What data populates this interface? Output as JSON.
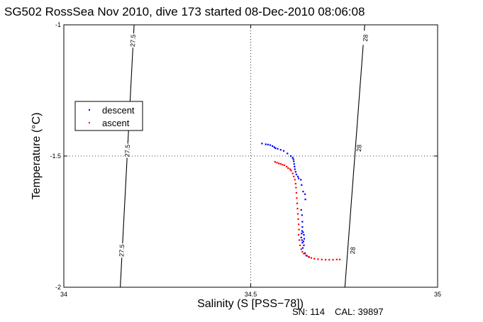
{
  "chart_data": {
    "type": "scatter",
    "title": "SG502 RossSea Nov 2010, dive 173 started 08-Dec-2010 08:06:08",
    "xlabel": "Salinity (S [PSS−78])",
    "ylabel": "Temperature (°C)",
    "xlim": [
      34,
      35
    ],
    "ylim": [
      -2,
      -1
    ],
    "x_ticks": [
      34,
      34.5,
      35
    ],
    "y_ticks": [
      -1,
      -1.5,
      -2
    ],
    "x_tick_labels": [
      "34",
      "34.5",
      "35"
    ],
    "y_tick_labels": [
      "-1",
      "-1.5",
      "-2"
    ],
    "grid": "dotted at 34.5 and -1.5",
    "legend_position": "upper-left",
    "isopycnals": [
      {
        "label": "27.5",
        "points": [
          [
            34.188,
            -1.0
          ],
          [
            34.151,
            -2.0
          ]
        ],
        "label_positions": [
          [
            34.185,
            -1.06
          ],
          [
            34.17,
            -1.48
          ],
          [
            34.155,
            -1.86
          ]
        ]
      },
      {
        "label": "28",
        "points": [
          [
            34.805,
            -1.0
          ],
          [
            34.752,
            -2.0
          ]
        ],
        "label_positions": [
          [
            34.807,
            -1.05
          ],
          [
            34.79,
            -1.47
          ],
          [
            34.773,
            -1.86
          ]
        ]
      }
    ],
    "series": [
      {
        "name": "descent",
        "color": "#0000ff",
        "points": [
          [
            34.53,
            -1.452
          ],
          [
            34.54,
            -1.455
          ],
          [
            34.546,
            -1.456
          ],
          [
            34.552,
            -1.458
          ],
          [
            34.558,
            -1.462
          ],
          [
            34.563,
            -1.466
          ],
          [
            34.566,
            -1.47
          ],
          [
            34.572,
            -1.472
          ],
          [
            34.58,
            -1.476
          ],
          [
            34.588,
            -1.48
          ],
          [
            34.598,
            -1.49
          ],
          [
            34.607,
            -1.5
          ],
          [
            34.612,
            -1.506
          ],
          [
            34.614,
            -1.512
          ],
          [
            34.615,
            -1.52
          ],
          [
            34.616,
            -1.53
          ],
          [
            34.617,
            -1.54
          ],
          [
            34.618,
            -1.55
          ],
          [
            34.62,
            -1.56
          ],
          [
            34.622,
            -1.57
          ],
          [
            34.626,
            -1.578
          ],
          [
            34.628,
            -1.585
          ],
          [
            34.634,
            -1.59
          ],
          [
            34.636,
            -1.61
          ],
          [
            34.64,
            -1.635
          ],
          [
            34.645,
            -1.645
          ],
          [
            34.646,
            -1.665
          ],
          [
            34.635,
            -1.705
          ],
          [
            34.637,
            -1.725
          ],
          [
            34.638,
            -1.75
          ],
          [
            34.638,
            -1.77
          ],
          [
            34.637,
            -1.785
          ],
          [
            34.64,
            -1.79
          ],
          [
            34.636,
            -1.795
          ],
          [
            34.642,
            -1.8
          ],
          [
            34.635,
            -1.81
          ],
          [
            34.643,
            -1.815
          ],
          [
            34.637,
            -1.82
          ],
          [
            34.641,
            -1.825
          ],
          [
            34.638,
            -1.83
          ],
          [
            34.642,
            -1.84
          ],
          [
            34.639,
            -1.85
          ],
          [
            34.645,
            -1.87
          ],
          [
            34.65,
            -1.88
          ],
          [
            34.656,
            -1.885
          ]
        ]
      },
      {
        "name": "ascent",
        "color": "#ff0000",
        "points": [
          [
            34.565,
            -1.522
          ],
          [
            34.57,
            -1.525
          ],
          [
            34.575,
            -1.528
          ],
          [
            34.58,
            -1.53
          ],
          [
            34.585,
            -1.533
          ],
          [
            34.59,
            -1.535
          ],
          [
            34.596,
            -1.54
          ],
          [
            34.6,
            -1.546
          ],
          [
            34.605,
            -1.55
          ],
          [
            34.608,
            -1.555
          ],
          [
            34.612,
            -1.566
          ],
          [
            34.615,
            -1.578
          ],
          [
            34.618,
            -1.59
          ],
          [
            34.62,
            -1.605
          ],
          [
            34.621,
            -1.62
          ],
          [
            34.622,
            -1.64
          ],
          [
            34.623,
            -1.66
          ],
          [
            34.624,
            -1.68
          ],
          [
            34.625,
            -1.7
          ],
          [
            34.626,
            -1.72
          ],
          [
            34.627,
            -1.74
          ],
          [
            34.628,
            -1.76
          ],
          [
            34.629,
            -1.78
          ],
          [
            34.628,
            -1.8
          ],
          [
            34.63,
            -1.82
          ],
          [
            34.632,
            -1.84
          ],
          [
            34.635,
            -1.855
          ],
          [
            34.638,
            -1.865
          ],
          [
            34.642,
            -1.872
          ],
          [
            34.648,
            -1.878
          ],
          [
            34.655,
            -1.884
          ],
          [
            34.662,
            -1.888
          ],
          [
            34.67,
            -1.891
          ],
          [
            34.68,
            -1.893
          ],
          [
            34.69,
            -1.894
          ],
          [
            34.7,
            -1.895
          ],
          [
            34.71,
            -1.895
          ],
          [
            34.72,
            -1.895
          ],
          [
            34.73,
            -1.894
          ],
          [
            34.738,
            -1.894
          ]
        ]
      }
    ],
    "footer": {
      "serial": "SN: 114",
      "calibration": "CAL: 39897"
    }
  }
}
